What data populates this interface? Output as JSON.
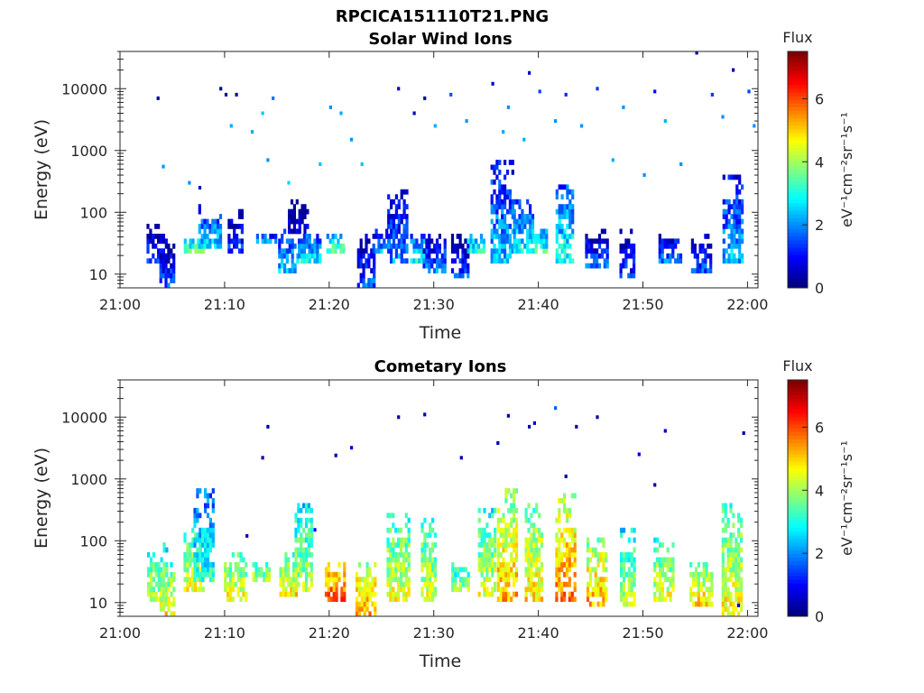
{
  "figure": {
    "title": "RPCICA151110T21.PNG"
  },
  "chart_data": [
    {
      "type": "heatmap",
      "title": "Solar Wind Ions",
      "xlabel": "Time",
      "ylabel": "Energy (eV)",
      "x_ticks": [
        "21:00",
        "21:10",
        "21:20",
        "21:30",
        "21:40",
        "21:50",
        "22:00"
      ],
      "x_range_minutes": [
        0,
        61
      ],
      "y_scale": "log",
      "y_ticks": [
        "10",
        "100",
        "1000",
        "10000"
      ],
      "y_range": [
        6,
        40000
      ],
      "colorbar": {
        "label": "Flux",
        "units": "eV⁻¹cm⁻²sr⁻¹s⁻¹",
        "ticks": [
          "0",
          "2",
          "4",
          "6"
        ],
        "range": [
          0,
          7.5
        ],
        "colormap": "jet"
      },
      "bursts": [
        {
          "t": 3.5,
          "emin": 15,
          "emax": 60,
          "flux": 1.5
        },
        {
          "t": 4.5,
          "emin": 6,
          "emax": 30,
          "flux": 1.6
        },
        {
          "t": 7.0,
          "emin": 20,
          "emax": 45,
          "flux": 3.5
        },
        {
          "t": 8.5,
          "emin": 25,
          "emax": 120,
          "flux": 2.6
        },
        {
          "t": 11.0,
          "emin": 20,
          "emax": 100,
          "flux": 1.5
        },
        {
          "t": 14.0,
          "emin": 30,
          "emax": 45,
          "flux": 2.2
        },
        {
          "t": 16.0,
          "emin": 10,
          "emax": 50,
          "flux": 2.5
        },
        {
          "t": 17.0,
          "emin": 40,
          "emax": 150,
          "flux": 0.8
        },
        {
          "t": 18.0,
          "emin": 15,
          "emax": 45,
          "flux": 2.8
        },
        {
          "t": 20.5,
          "emin": 20,
          "emax": 45,
          "flux": 3.6
        },
        {
          "t": 23.5,
          "emin": 6,
          "emax": 45,
          "flux": 1.5
        },
        {
          "t": 25.0,
          "emin": 20,
          "emax": 50,
          "flux": 2.2
        },
        {
          "t": 26.5,
          "emin": 15,
          "emax": 200,
          "flux": 2.0
        },
        {
          "t": 28.5,
          "emin": 15,
          "emax": 45,
          "flux": 3.0
        },
        {
          "t": 30.0,
          "emin": 10,
          "emax": 45,
          "flux": 1.8
        },
        {
          "t": 32.5,
          "emin": 8,
          "emax": 45,
          "flux": 1.5
        },
        {
          "t": 34.0,
          "emin": 20,
          "emax": 45,
          "flux": 3.2
        },
        {
          "t": 36.5,
          "emin": 15,
          "emax": 600,
          "flux": 2.4
        },
        {
          "t": 38.5,
          "emin": 20,
          "emax": 150,
          "flux": 2.8
        },
        {
          "t": 40.0,
          "emin": 20,
          "emax": 50,
          "flux": 3.3
        },
        {
          "t": 42.5,
          "emin": 15,
          "emax": 250,
          "flux": 3.0
        },
        {
          "t": 45.5,
          "emin": 12,
          "emax": 50,
          "flux": 1.6
        },
        {
          "t": 48.5,
          "emin": 8,
          "emax": 50,
          "flux": 1.4
        },
        {
          "t": 52.5,
          "emin": 15,
          "emax": 45,
          "flux": 1.8
        },
        {
          "t": 55.5,
          "emin": 10,
          "emax": 45,
          "flux": 1.6
        },
        {
          "t": 58.5,
          "emin": 15,
          "emax": 350,
          "flux": 2.3
        }
      ],
      "scatter": [
        {
          "t": 3.5,
          "e": 7000,
          "flux": 0.3
        },
        {
          "t": 4.0,
          "e": 550,
          "flux": 2.0
        },
        {
          "t": 6.5,
          "e": 300,
          "flux": 2.0
        },
        {
          "t": 7.5,
          "e": 250,
          "flux": 0.5
        },
        {
          "t": 9.5,
          "e": 10000,
          "flux": 0.3
        },
        {
          "t": 10.0,
          "e": 8000,
          "flux": 0.3
        },
        {
          "t": 10.5,
          "e": 2500,
          "flux": 2.2
        },
        {
          "t": 11.0,
          "e": 8000,
          "flux": 0.4
        },
        {
          "t": 12.5,
          "e": 2000,
          "flux": 2.2
        },
        {
          "t": 13.5,
          "e": 4000,
          "flux": 2.4
        },
        {
          "t": 14.0,
          "e": 700,
          "flux": 2.0
        },
        {
          "t": 14.5,
          "e": 7000,
          "flux": 1.8
        },
        {
          "t": 16.0,
          "e": 300,
          "flux": 2.5
        },
        {
          "t": 19.0,
          "e": 600,
          "flux": 2.4
        },
        {
          "t": 20.0,
          "e": 5000,
          "flux": 2.0
        },
        {
          "t": 21.0,
          "e": 4000,
          "flux": 2.2
        },
        {
          "t": 22.0,
          "e": 1500,
          "flux": 2.0
        },
        {
          "t": 23.0,
          "e": 600,
          "flux": 2.4
        },
        {
          "t": 26.5,
          "e": 10000,
          "flux": 0.6
        },
        {
          "t": 28.0,
          "e": 4000,
          "flux": 0.5
        },
        {
          "t": 29.0,
          "e": 7000,
          "flux": 0.4
        },
        {
          "t": 30.0,
          "e": 2500,
          "flux": 2.2
        },
        {
          "t": 31.5,
          "e": 8000,
          "flux": 1.5
        },
        {
          "t": 33.0,
          "e": 3000,
          "flux": 2.0
        },
        {
          "t": 35.5,
          "e": 12000,
          "flux": 0.5
        },
        {
          "t": 36.5,
          "e": 2000,
          "flux": 2.2
        },
        {
          "t": 37.0,
          "e": 5000,
          "flux": 2.0
        },
        {
          "t": 38.5,
          "e": 1500,
          "flux": 2.2
        },
        {
          "t": 39.0,
          "e": 18000,
          "flux": 0.6
        },
        {
          "t": 40.0,
          "e": 9000,
          "flux": 1.4
        },
        {
          "t": 41.5,
          "e": 3000,
          "flux": 2.0
        },
        {
          "t": 42.5,
          "e": 8000,
          "flux": 1.2
        },
        {
          "t": 44.0,
          "e": 2500,
          "flux": 2.0
        },
        {
          "t": 45.5,
          "e": 10000,
          "flux": 1.3
        },
        {
          "t": 47.0,
          "e": 700,
          "flux": 2.2
        },
        {
          "t": 48.0,
          "e": 5000,
          "flux": 2.0
        },
        {
          "t": 50.0,
          "e": 400,
          "flux": 2.0
        },
        {
          "t": 51.0,
          "e": 9000,
          "flux": 1.0
        },
        {
          "t": 52.0,
          "e": 3000,
          "flux": 2.2
        },
        {
          "t": 53.5,
          "e": 600,
          "flux": 2.0
        },
        {
          "t": 55.0,
          "e": 38000,
          "flux": 0.3
        },
        {
          "t": 56.5,
          "e": 8000,
          "flux": 1.3
        },
        {
          "t": 57.5,
          "e": 3500,
          "flux": 2.0
        },
        {
          "t": 58.5,
          "e": 20000,
          "flux": 0.3
        },
        {
          "t": 60.0,
          "e": 9000,
          "flux": 1.4
        },
        {
          "t": 60.5,
          "e": 2500,
          "flux": 2.0
        }
      ]
    },
    {
      "type": "heatmap",
      "title": "Cometary Ions",
      "xlabel": "Time",
      "ylabel": "Energy (eV)",
      "x_ticks": [
        "21:00",
        "21:10",
        "21:20",
        "21:30",
        "21:40",
        "21:50",
        "22:00"
      ],
      "x_range_minutes": [
        0,
        61
      ],
      "y_scale": "log",
      "y_ticks": [
        "10",
        "100",
        "1000",
        "10000"
      ],
      "y_range": [
        6,
        40000
      ],
      "colorbar": {
        "label": "Flux",
        "units": "eV⁻¹cm⁻²sr⁻¹s⁻¹",
        "ticks": [
          "0",
          "2",
          "4",
          "6"
        ],
        "range": [
          0,
          7.5
        ],
        "colormap": "jet"
      },
      "bursts": [
        {
          "t": 3.5,
          "emin": 10,
          "emax": 80,
          "flux": 4.3
        },
        {
          "t": 4.5,
          "emin": 6,
          "emax": 40,
          "flux": 4.8
        },
        {
          "t": 7.0,
          "emin": 15,
          "emax": 150,
          "flux": 4.6
        },
        {
          "t": 8.0,
          "emin": 20,
          "emax": 600,
          "flux": 3.2
        },
        {
          "t": 11.0,
          "emin": 10,
          "emax": 60,
          "flux": 4.7
        },
        {
          "t": 13.5,
          "emin": 20,
          "emax": 45,
          "flux": 4.4
        },
        {
          "t": 16.0,
          "emin": 12,
          "emax": 60,
          "flux": 4.8
        },
        {
          "t": 17.5,
          "emin": 15,
          "emax": 350,
          "flux": 4.2
        },
        {
          "t": 20.5,
          "emin": 10,
          "emax": 45,
          "flux": 6.0
        },
        {
          "t": 23.5,
          "emin": 6,
          "emax": 45,
          "flux": 5.5
        },
        {
          "t": 26.5,
          "emin": 10,
          "emax": 250,
          "flux": 4.6
        },
        {
          "t": 29.5,
          "emin": 10,
          "emax": 200,
          "flux": 4.5
        },
        {
          "t": 32.5,
          "emin": 15,
          "emax": 45,
          "flux": 4.1
        },
        {
          "t": 35.0,
          "emin": 12,
          "emax": 300,
          "flux": 4.5
        },
        {
          "t": 37.0,
          "emin": 10,
          "emax": 600,
          "flux": 5.3
        },
        {
          "t": 39.5,
          "emin": 10,
          "emax": 400,
          "flux": 4.9
        },
        {
          "t": 42.5,
          "emin": 10,
          "emax": 500,
          "flux": 5.7
        },
        {
          "t": 45.5,
          "emin": 8,
          "emax": 100,
          "flux": 5.4
        },
        {
          "t": 48.5,
          "emin": 8,
          "emax": 150,
          "flux": 4.2
        },
        {
          "t": 52.0,
          "emin": 10,
          "emax": 100,
          "flux": 4.6
        },
        {
          "t": 55.5,
          "emin": 8,
          "emax": 45,
          "flux": 5.0
        },
        {
          "t": 58.5,
          "emin": 6,
          "emax": 350,
          "flux": 4.8
        }
      ],
      "scatter": [
        {
          "t": 12.0,
          "e": 120,
          "flux": 0.4
        },
        {
          "t": 13.5,
          "e": 2200,
          "flux": 0.3
        },
        {
          "t": 14.0,
          "e": 7000,
          "flux": 0.3
        },
        {
          "t": 18.5,
          "e": 150,
          "flux": 1.0
        },
        {
          "t": 20.5,
          "e": 2400,
          "flux": 0.3
        },
        {
          "t": 22.0,
          "e": 3200,
          "flux": 0.6
        },
        {
          "t": 26.5,
          "e": 10000,
          "flux": 0.3
        },
        {
          "t": 29.0,
          "e": 11000,
          "flux": 0.3
        },
        {
          "t": 32.5,
          "e": 2200,
          "flux": 0.3
        },
        {
          "t": 36.0,
          "e": 3800,
          "flux": 0.4
        },
        {
          "t": 37.0,
          "e": 10500,
          "flux": 0.5
        },
        {
          "t": 39.0,
          "e": 7000,
          "flux": 0.5
        },
        {
          "t": 39.5,
          "e": 8000,
          "flux": 0.6
        },
        {
          "t": 41.5,
          "e": 14000,
          "flux": 1.6
        },
        {
          "t": 42.5,
          "e": 1100,
          "flux": 0.4
        },
        {
          "t": 43.5,
          "e": 7000,
          "flux": 0.3
        },
        {
          "t": 45.5,
          "e": 10000,
          "flux": 0.3
        },
        {
          "t": 49.5,
          "e": 2500,
          "flux": 0.6
        },
        {
          "t": 52.0,
          "e": 6000,
          "flux": 0.4
        },
        {
          "t": 51.0,
          "e": 800,
          "flux": 0.3
        },
        {
          "t": 59.5,
          "e": 5500,
          "flux": 0.3
        },
        {
          "t": 59.0,
          "e": 9,
          "flux": 0.6
        }
      ]
    }
  ]
}
